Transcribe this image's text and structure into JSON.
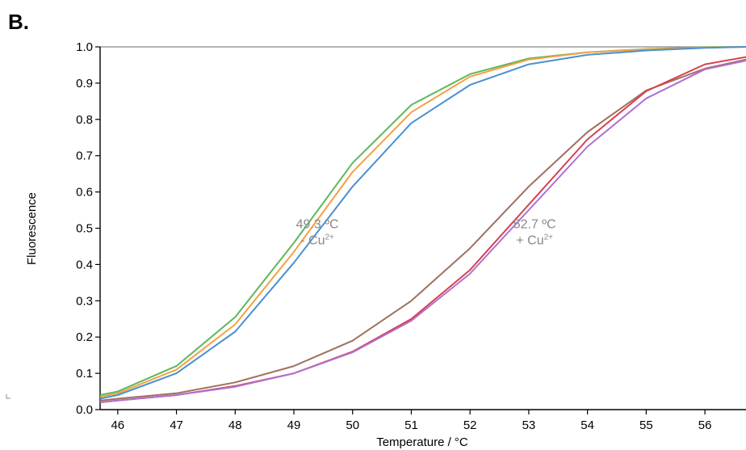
{
  "panel_label": "B.",
  "chart_data": {
    "type": "line",
    "title": "",
    "xlabel": "Temperature / °C",
    "ylabel": "Fluorescence",
    "xlim": [
      45.7,
      56.7
    ],
    "ylim": [
      0,
      1.0
    ],
    "x_ticks": [
      46,
      47,
      48,
      49,
      50,
      51,
      52,
      53,
      54,
      55,
      56
    ],
    "y_ticks": [
      0.0,
      0.1,
      0.2,
      0.3,
      0.4,
      0.5,
      0.6,
      0.7,
      0.8,
      0.9,
      1.0
    ],
    "y_tick_labels": [
      "0.0",
      "0.1",
      "0.2",
      "0.3",
      "0.4",
      "0.5",
      "0.6",
      "0.7",
      "0.8",
      "0.9",
      "1.0"
    ],
    "x_tick_labels": [
      "46",
      "47",
      "48",
      "49",
      "50",
      "51",
      "52",
      "53",
      "54",
      "55",
      "56"
    ],
    "grid": false,
    "series": [
      {
        "color": "#5cb85c",
        "x": [
          45.7,
          46,
          47,
          48,
          49,
          50,
          51,
          52,
          53,
          54,
          55,
          56,
          56.7
        ],
        "y": [
          0.04,
          0.05,
          0.12,
          0.255,
          0.46,
          0.68,
          0.84,
          0.925,
          0.968,
          0.985,
          0.994,
          0.999,
          1.0
        ]
      },
      {
        "color": "#f5a040",
        "x": [
          45.7,
          46,
          47,
          48,
          49,
          50,
          51,
          52,
          53,
          54,
          55,
          56,
          56.7
        ],
        "y": [
          0.035,
          0.045,
          0.11,
          0.235,
          0.435,
          0.655,
          0.82,
          0.918,
          0.965,
          0.985,
          0.993,
          0.998,
          1.0
        ]
      },
      {
        "color": "#4a90d0",
        "x": [
          45.7,
          46,
          47,
          48,
          49,
          50,
          51,
          52,
          53,
          54,
          55,
          56,
          56.7
        ],
        "y": [
          0.03,
          0.04,
          0.1,
          0.215,
          0.405,
          0.615,
          0.79,
          0.895,
          0.952,
          0.978,
          0.99,
          0.997,
          1.0
        ]
      },
      {
        "color": "#a07060",
        "x": [
          45.7,
          46,
          47,
          48,
          49,
          50,
          51,
          52,
          53,
          54,
          55,
          56,
          56.7
        ],
        "y": [
          0.025,
          0.03,
          0.045,
          0.075,
          0.12,
          0.19,
          0.3,
          0.445,
          0.615,
          0.765,
          0.88,
          0.94,
          0.965
        ]
      },
      {
        "color": "#d84050",
        "x": [
          45.7,
          46,
          47,
          48,
          49,
          50,
          51,
          52,
          53,
          54,
          55,
          56,
          56.7
        ],
        "y": [
          0.02,
          0.025,
          0.04,
          0.065,
          0.1,
          0.16,
          0.25,
          0.385,
          0.565,
          0.745,
          0.878,
          0.952,
          0.972
        ]
      },
      {
        "color": "#b070d0",
        "x": [
          45.7,
          46,
          47,
          48,
          49,
          50,
          51,
          52,
          53,
          54,
          55,
          56,
          56.7
        ],
        "y": [
          0.02,
          0.025,
          0.04,
          0.063,
          0.1,
          0.158,
          0.245,
          0.375,
          0.55,
          0.725,
          0.858,
          0.938,
          0.962
        ]
      }
    ],
    "annotations": [
      {
        "line1": "49.3 ºC",
        "line2_prefix": "- Cu",
        "line2_sup": "2+",
        "x": 49.4,
        "y": 0.5
      },
      {
        "line1": "52.7 ºC",
        "line2_prefix": "+ Cu",
        "line2_sup": "2+",
        "x": 53.1,
        "y": 0.5
      }
    ]
  }
}
